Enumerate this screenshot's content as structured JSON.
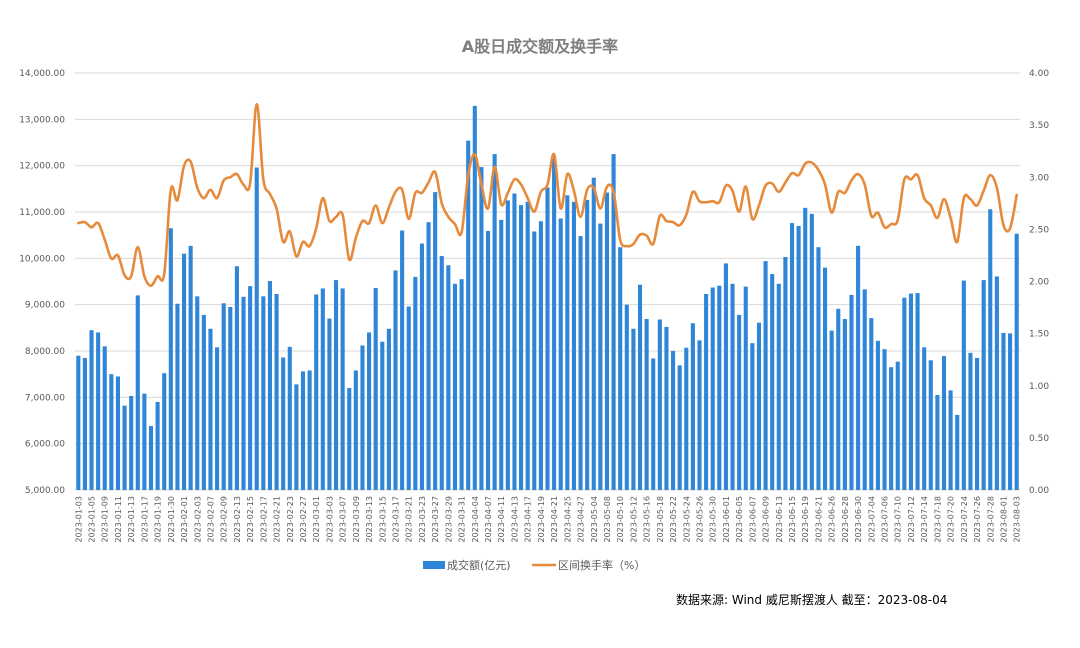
{
  "chart_data": {
    "type": "bar",
    "title": "A股日成交额及换手率",
    "source_note": "数据来源: Wind   威尼斯摆渡人    截至：2023-08-04",
    "colors": {
      "bar": "#2f86d8",
      "line": "#e68a3c",
      "grid": "#d9d9d9",
      "axis_text": "#595959"
    },
    "grid": true,
    "legend_position": "bottom",
    "y_left": {
      "min": 5000,
      "max": 14000,
      "step": 1000,
      "decimals": 2
    },
    "y_right": {
      "min": 0,
      "max": 4,
      "step": 0.5,
      "decimals": 2
    },
    "x_tick_labels": [
      "2023-01-03",
      "2023-01-05",
      "2023-01-09",
      "2023-01-11",
      "2023-01-13",
      "2023-01-17",
      "2023-01-19",
      "2023-01-30",
      "2023-02-01",
      "2023-02-03",
      "2023-02-07",
      "2023-02-09",
      "2023-02-13",
      "2023-02-15",
      "2023-02-17",
      "2023-02-21",
      "2023-02-23",
      "2023-02-27",
      "2023-03-01",
      "2023-03-03",
      "2023-03-07",
      "2023-03-09",
      "2023-03-13",
      "2023-03-15",
      "2023-03-17",
      "2023-03-21",
      "2023-03-23",
      "2023-03-27",
      "2023-03-29",
      "2023-03-31",
      "2023-04-04",
      "2023-04-07",
      "2023-04-11",
      "2023-04-13",
      "2023-04-17",
      "2023-04-19",
      "2023-04-21",
      "2023-04-25",
      "2023-04-27",
      "2023-05-04",
      "2023-05-08",
      "2023-05-10",
      "2023-05-12",
      "2023-05-16",
      "2023-05-18",
      "2023-05-22",
      "2023-05-24",
      "2023-05-26",
      "2023-05-30",
      "2023-06-01",
      "2023-06-05",
      "2023-06-07",
      "2023-06-09",
      "2023-06-13",
      "2023-06-15",
      "2023-06-19",
      "2023-06-21",
      "2023-06-26",
      "2023-06-28",
      "2023-06-30",
      "2023-07-04",
      "2023-07-06",
      "2023-07-10",
      "2023-07-12",
      "2023-07-14",
      "2023-07-18",
      "2023-07-20",
      "2023-07-24",
      "2023-07-26",
      "2023-07-28",
      "2023-08-01",
      "2023-08-03"
    ],
    "x_tick_every": 2,
    "series": [
      {
        "name": "成交额(亿元)",
        "kind": "bar",
        "axis": "left",
        "values": [
          7900,
          7850,
          8450,
          8400,
          8100,
          7500,
          7450,
          6820,
          7030,
          9200,
          7080,
          6380,
          6900,
          7520,
          10650,
          9020,
          10100,
          10270,
          9180,
          8780,
          8480,
          8080,
          9030,
          8950,
          9830,
          9170,
          9400,
          11960,
          9180,
          9510,
          9230,
          7860,
          8090,
          7280,
          7560,
          7580,
          9220,
          9350,
          8700,
          9530,
          9350,
          7200,
          7580,
          8120,
          8400,
          9360,
          8200,
          8480,
          9740,
          10600,
          8960,
          9600,
          10320,
          10780,
          11430,
          10050,
          9850,
          9450,
          9550,
          12540,
          13290,
          11970,
          10590,
          12250,
          10830,
          11250,
          11400,
          11150,
          11220,
          10580,
          10800,
          11530,
          12200,
          10860,
          11360,
          11220,
          10480,
          11260,
          11740,
          10750,
          11420,
          12250,
          10240,
          9000,
          8480,
          9430,
          8690,
          7840,
          8680,
          8520,
          8000,
          7690,
          8070,
          8600,
          8230,
          9230,
          9370,
          9410,
          9890,
          9450,
          8780,
          9390,
          8170,
          8610,
          9940,
          9660,
          9450,
          10030,
          10760,
          10700,
          11090,
          10960,
          10240,
          9800,
          8440,
          8910,
          8690,
          9210,
          10270,
          9330,
          8710,
          8220,
          8040,
          7650,
          7770,
          9150,
          9240,
          9250,
          8080,
          7800,
          7050,
          7890,
          7150,
          6620,
          9520,
          7960,
          7850,
          9530,
          11060,
          9610,
          8390,
          8380,
          10530
        ]
      },
      {
        "name": "区间换手率（%）",
        "kind": "line",
        "axis": "right",
        "values": [
          2.56,
          2.57,
          2.52,
          2.56,
          2.4,
          2.22,
          2.25,
          2.06,
          2.05,
          2.33,
          2.05,
          1.96,
          2.05,
          2.07,
          2.88,
          2.78,
          3.11,
          3.15,
          2.9,
          2.8,
          2.88,
          2.8,
          2.97,
          3.0,
          3.03,
          2.93,
          2.94,
          3.7,
          2.98,
          2.84,
          2.7,
          2.38,
          2.48,
          2.24,
          2.38,
          2.34,
          2.51,
          2.8,
          2.58,
          2.62,
          2.64,
          2.21,
          2.42,
          2.58,
          2.56,
          2.73,
          2.56,
          2.71,
          2.86,
          2.88,
          2.6,
          2.85,
          2.85,
          2.95,
          3.05,
          2.75,
          2.62,
          2.55,
          2.47,
          3.02,
          3.22,
          2.93,
          2.7,
          3.1,
          2.74,
          2.85,
          2.98,
          2.93,
          2.8,
          2.67,
          2.86,
          2.93,
          3.22,
          2.7,
          3.03,
          2.87,
          2.62,
          2.88,
          2.9,
          2.7,
          2.91,
          2.86,
          2.4,
          2.34,
          2.36,
          2.45,
          2.44,
          2.36,
          2.63,
          2.58,
          2.57,
          2.54,
          2.64,
          2.86,
          2.77,
          2.76,
          2.77,
          2.76,
          2.92,
          2.87,
          2.67,
          2.91,
          2.6,
          2.73,
          2.92,
          2.94,
          2.86,
          2.95,
          3.04,
          3.02,
          3.13,
          3.14,
          3.07,
          2.93,
          2.66,
          2.86,
          2.85,
          2.97,
          3.03,
          2.93,
          2.63,
          2.66,
          2.52,
          2.55,
          2.59,
          2.98,
          2.98,
          3.02,
          2.8,
          2.73,
          2.61,
          2.79,
          2.61,
          2.38,
          2.8,
          2.79,
          2.73,
          2.87,
          3.02,
          2.9,
          2.54,
          2.51,
          2.83
        ]
      }
    ]
  }
}
